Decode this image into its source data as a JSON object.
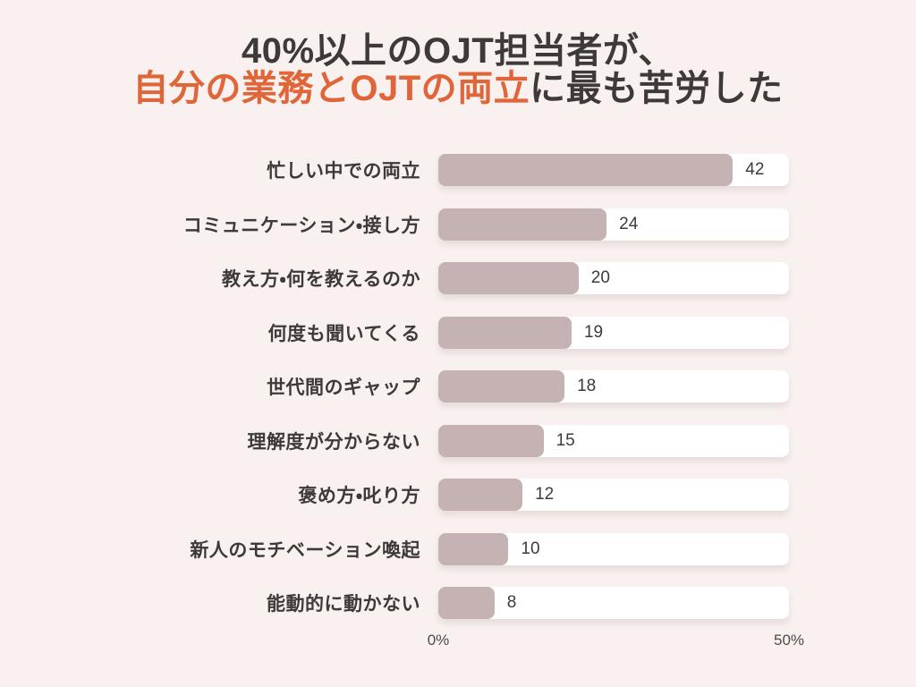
{
  "title": {
    "line1": "40%以上のOJT担当者が、",
    "line2_highlight": "自分の業務とOJTの両立",
    "line2_rest": "に最も苦労した"
  },
  "chart_data": {
    "type": "bar",
    "orientation": "horizontal",
    "title": "40%以上のOJT担当者が、自分の業務とOJTの両立に最も苦労した",
    "categories": [
      "忙しい中での両立",
      "コミュニケーション・接し方",
      "教え方・何を教えるのか",
      "何度も聞いてくる",
      "世代間のギャップ",
      "理解度が分からない",
      "褒め方・叱り方",
      "新人のモチベーション喚起",
      "能動的に動かない"
    ],
    "values": [
      42,
      24,
      20,
      19,
      18,
      15,
      12,
      10,
      8
    ],
    "xlabel": "",
    "ylabel": "",
    "xlim": [
      0,
      50
    ],
    "x_tick_labels": [
      "0%",
      "50%"
    ],
    "grid": false,
    "legend": false,
    "unit": "%"
  },
  "axis": {
    "left_tick": "0%",
    "right_tick": "50%"
  },
  "colors": {
    "background": "#f8f1f0",
    "title_text": "#3e3a39",
    "title_accent": "#e0663a",
    "bar_fill": "#c5b2b2",
    "bar_track": "#ffffff",
    "value_text": "#3e3a39",
    "axis_text": "#4d4a49"
  }
}
